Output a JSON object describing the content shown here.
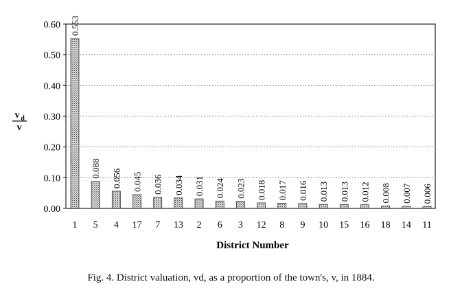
{
  "chart_data": {
    "type": "bar",
    "title": "",
    "xlabel": "District Number",
    "ylabel_numerator": "v",
    "ylabel_numerator_sub": "d",
    "ylabel_denominator": "v",
    "ylim": [
      0,
      0.6
    ],
    "yticks": [
      "0.00",
      "0.10",
      "0.20",
      "0.30",
      "0.40",
      "0.50",
      "0.60"
    ],
    "yticks_values": [
      0,
      0.1,
      0.2,
      0.3,
      0.4,
      0.5,
      0.6
    ],
    "categories": [
      "1",
      "5",
      "4",
      "17",
      "7",
      "13",
      "2",
      "6",
      "3",
      "12",
      "8",
      "9",
      "10",
      "15",
      "16",
      "18",
      "14",
      "11"
    ],
    "values": [
      0.553,
      0.088,
      0.056,
      0.045,
      0.036,
      0.034,
      0.031,
      0.024,
      0.023,
      0.018,
      0.017,
      0.016,
      0.013,
      0.013,
      0.012,
      0.008,
      0.007,
      0.006
    ],
    "labels": [
      "0.553",
      "0.088",
      "0.056",
      "0.045",
      "0.036",
      "0.034",
      "0.031",
      "0.024",
      "0.023",
      "0.018",
      "0.017",
      "0.016",
      "0.013",
      "0.013",
      "0.012",
      "0.008",
      "0.007",
      "0.006"
    ],
    "grid": "dotted-horizontal",
    "legend": "none",
    "colors": {
      "bar_fill": "#b8b8b8",
      "bar_stroke": "#333333",
      "grid": "#666666"
    }
  },
  "caption": "Fig. 4.  District valuation, vd, as a proportion of the town's, v, in 1884."
}
